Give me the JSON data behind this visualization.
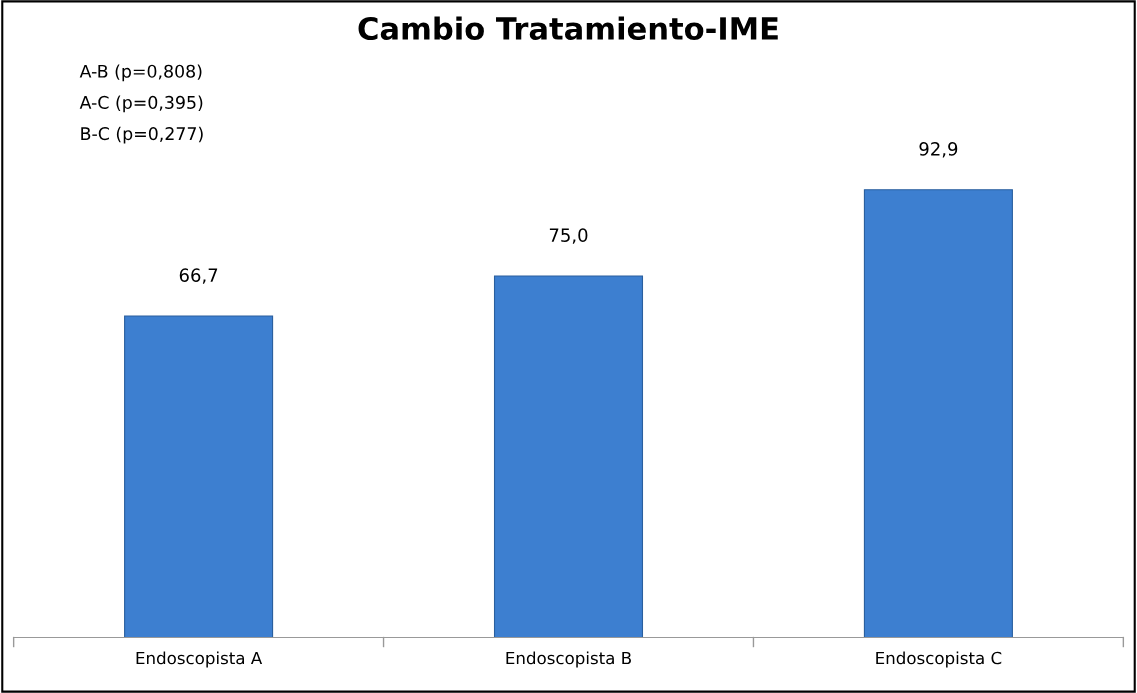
{
  "chart_data": {
    "type": "bar",
    "title": "Cambio Tratamiento-IME",
    "categories": [
      "Endoscopista A",
      "Endoscopista B",
      "Endoscopista C"
    ],
    "values": [
      66.7,
      75.0,
      92.9
    ],
    "value_labels": [
      "66,7",
      "75,0",
      "92,9"
    ],
    "color": "#3d7fd0",
    "grid": false,
    "legend": false,
    "annotations": [
      "A-B (p=0,808)",
      "A-C (p=0,395)",
      "B-C (p=0,277)"
    ]
  }
}
